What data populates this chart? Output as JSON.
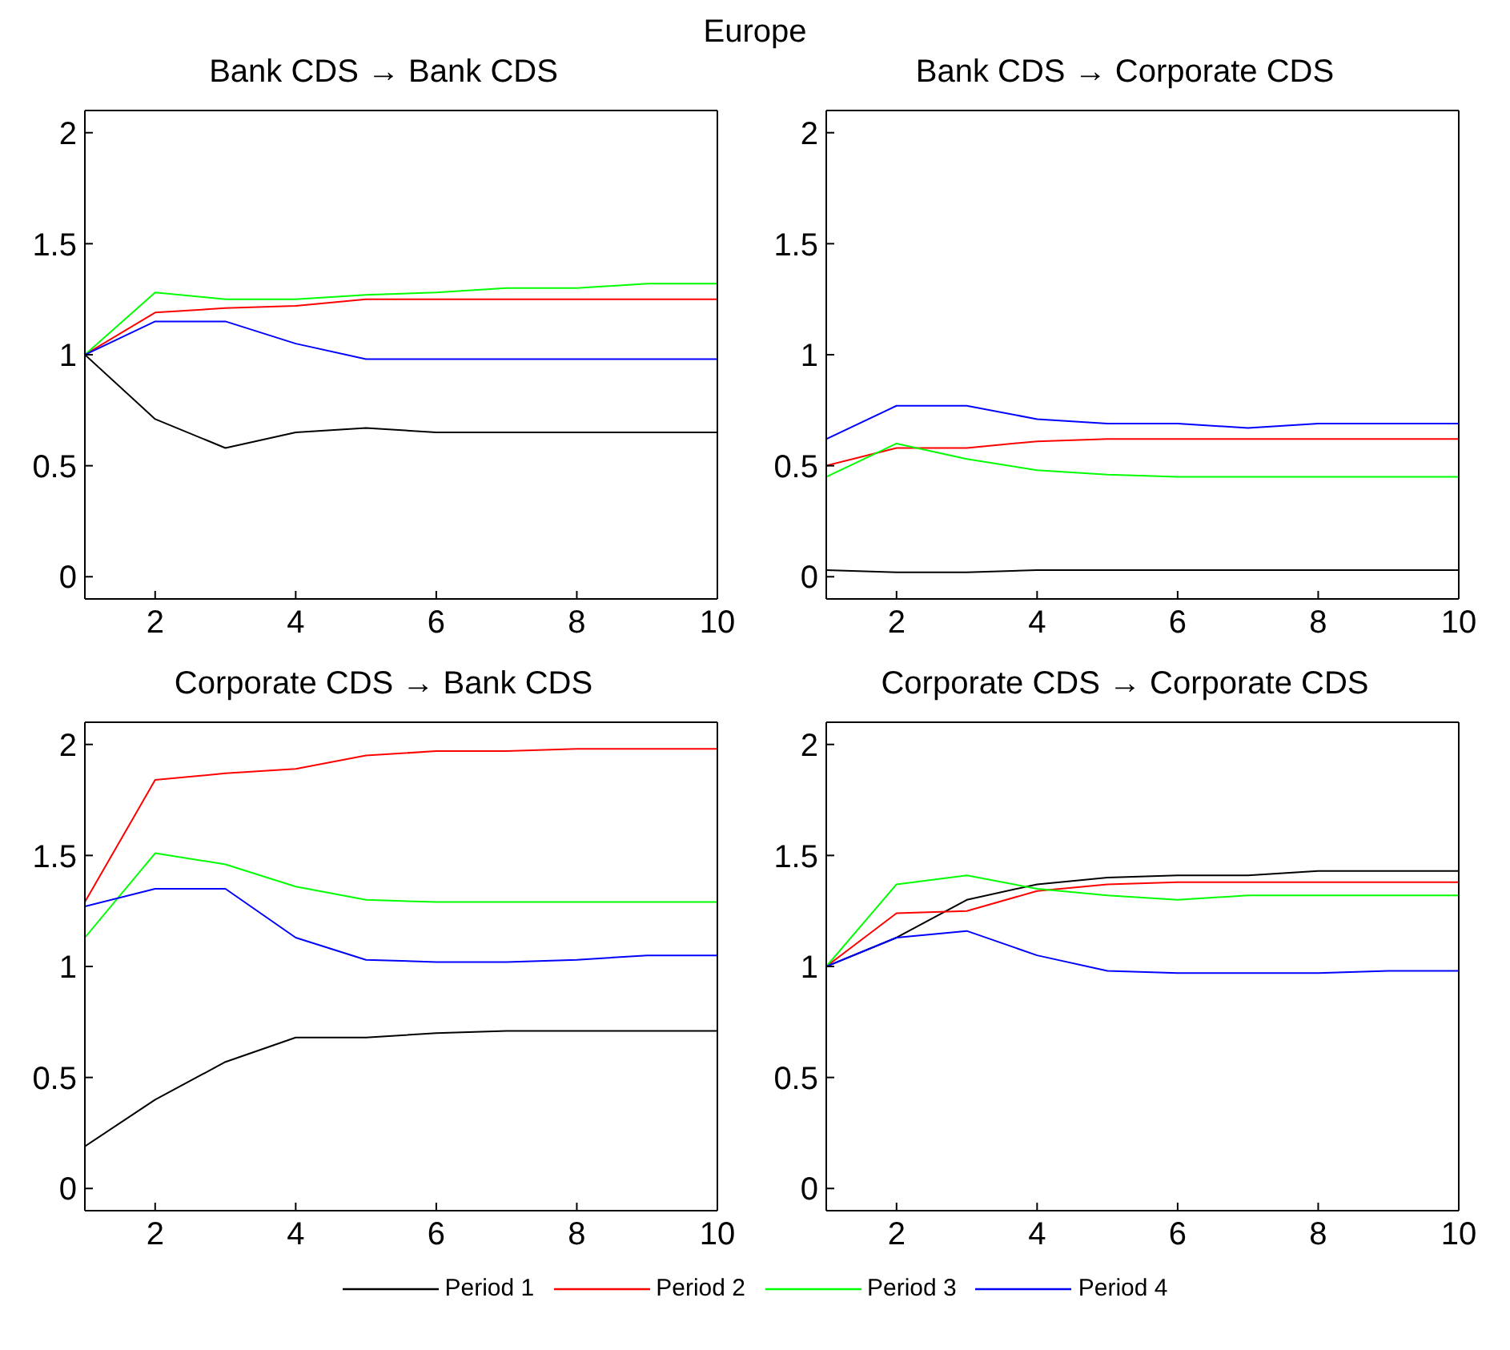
{
  "chart_data": [
    {
      "type": "line",
      "annotations": [
        "Europe"
      ],
      "title": "Bank CDS → Bank CDS",
      "x": [
        1,
        2,
        3,
        4,
        5,
        6,
        7,
        8,
        9,
        10
      ],
      "xlim": [
        1,
        10
      ],
      "xticks": [
        2,
        4,
        6,
        8,
        10
      ],
      "ylim": [
        -0.1,
        2.1
      ],
      "yticks": [
        0,
        0.5,
        1,
        1.5,
        2
      ],
      "grid": false,
      "series": [
        {
          "color": "#000000",
          "values": [
            1,
            0.71,
            0.58,
            0.65,
            0.67,
            0.65,
            0.65,
            0.65,
            0.65,
            0.65
          ]
        },
        {
          "color": "#ff0000",
          "values": [
            1,
            1.19,
            1.21,
            1.22,
            1.25,
            1.25,
            1.25,
            1.25,
            1.25,
            1.25
          ]
        },
        {
          "color": "#00ff00",
          "values": [
            1,
            1.28,
            1.25,
            1.25,
            1.27,
            1.28,
            1.3,
            1.3,
            1.32,
            1.32
          ]
        },
        {
          "color": "#0000ff",
          "values": [
            1,
            1.15,
            1.15,
            1.05,
            0.98,
            0.98,
            0.98,
            0.98,
            0.98,
            0.98
          ]
        }
      ]
    },
    {
      "type": "line",
      "title": "Bank CDS → Corporate CDS",
      "x": [
        1,
        2,
        3,
        4,
        5,
        6,
        7,
        8,
        9,
        10
      ],
      "xlim": [
        1,
        10
      ],
      "xticks": [
        2,
        4,
        6,
        8,
        10
      ],
      "ylim": [
        -0.1,
        2.1
      ],
      "yticks": [
        0,
        0.5,
        1,
        1.5,
        2
      ],
      "grid": false,
      "series": [
        {
          "color": "#000000",
          "values": [
            0.03,
            0.02,
            0.02,
            0.03,
            0.03,
            0.03,
            0.03,
            0.03,
            0.03,
            0.03
          ]
        },
        {
          "color": "#ff0000",
          "values": [
            0.5,
            0.58,
            0.58,
            0.61,
            0.62,
            0.62,
            0.62,
            0.62,
            0.62,
            0.62
          ]
        },
        {
          "color": "#00ff00",
          "values": [
            0.45,
            0.6,
            0.53,
            0.48,
            0.46,
            0.45,
            0.45,
            0.45,
            0.45,
            0.45
          ]
        },
        {
          "color": "#0000ff",
          "values": [
            0.62,
            0.77,
            0.77,
            0.71,
            0.69,
            0.69,
            0.67,
            0.69,
            0.69,
            0.69
          ]
        }
      ]
    },
    {
      "type": "line",
      "title": "Corporate CDS  → Bank CDS",
      "x": [
        1,
        2,
        3,
        4,
        5,
        6,
        7,
        8,
        9,
        10
      ],
      "xlim": [
        1,
        10
      ],
      "xticks": [
        2,
        4,
        6,
        8,
        10
      ],
      "ylim": [
        -0.1,
        2.1
      ],
      "yticks": [
        0,
        0.5,
        1,
        1.5,
        2
      ],
      "grid": false,
      "series": [
        {
          "color": "#000000",
          "values": [
            0.19,
            0.4,
            0.57,
            0.68,
            0.68,
            0.7,
            0.71,
            0.71,
            0.71,
            0.71
          ]
        },
        {
          "color": "#ff0000",
          "values": [
            1.29,
            1.84,
            1.87,
            1.89,
            1.95,
            1.97,
            1.97,
            1.98,
            1.98,
            1.98
          ]
        },
        {
          "color": "#00ff00",
          "values": [
            1.13,
            1.51,
            1.46,
            1.36,
            1.3,
            1.29,
            1.29,
            1.29,
            1.29,
            1.29
          ]
        },
        {
          "color": "#0000ff",
          "values": [
            1.27,
            1.35,
            1.35,
            1.13,
            1.03,
            1.02,
            1.02,
            1.03,
            1.05,
            1.05
          ]
        }
      ]
    },
    {
      "type": "line",
      "title": "Corporate CDS  → Corporate CDS",
      "x": [
        1,
        2,
        3,
        4,
        5,
        6,
        7,
        8,
        9,
        10
      ],
      "xlim": [
        1,
        10
      ],
      "xticks": [
        2,
        4,
        6,
        8,
        10
      ],
      "ylim": [
        -0.1,
        2.1
      ],
      "yticks": [
        0,
        0.5,
        1,
        1.5,
        2
      ],
      "grid": false,
      "legend": "bottom",
      "series": [
        {
          "name": "Period 1",
          "color": "#000000",
          "values": [
            1,
            1.13,
            1.3,
            1.37,
            1.4,
            1.41,
            1.41,
            1.43,
            1.43,
            1.43
          ]
        },
        {
          "name": "Period 2",
          "color": "#ff0000",
          "values": [
            1,
            1.24,
            1.25,
            1.34,
            1.37,
            1.38,
            1.38,
            1.38,
            1.38,
            1.38
          ]
        },
        {
          "name": "Period 3",
          "color": "#00ff00",
          "values": [
            1,
            1.37,
            1.41,
            1.35,
            1.32,
            1.3,
            1.32,
            1.32,
            1.32,
            1.32
          ]
        },
        {
          "name": "Period 4",
          "color": "#0000ff",
          "values": [
            1,
            1.13,
            1.16,
            1.05,
            0.98,
            0.97,
            0.97,
            0.97,
            0.98,
            0.98
          ]
        }
      ]
    }
  ]
}
